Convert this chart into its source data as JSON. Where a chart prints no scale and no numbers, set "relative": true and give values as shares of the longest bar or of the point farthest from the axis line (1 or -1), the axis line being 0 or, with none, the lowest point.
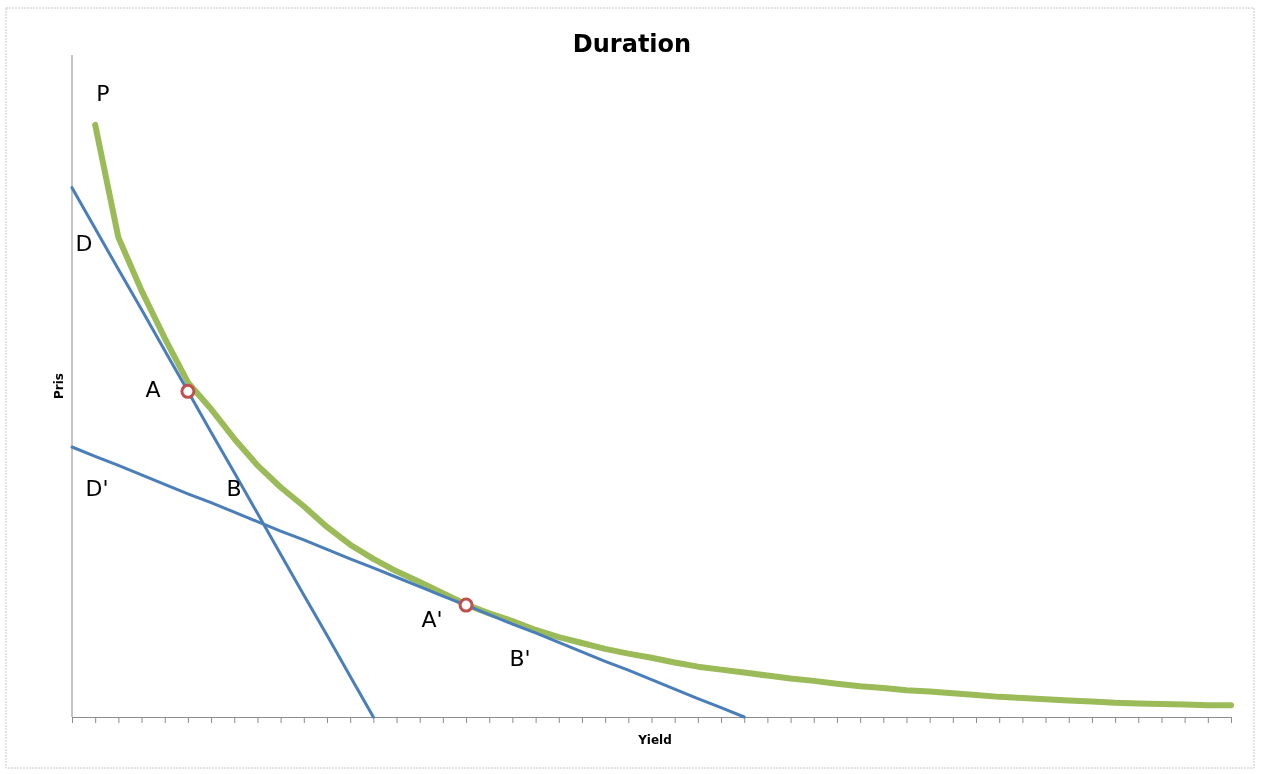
{
  "chart_data": {
    "type": "line",
    "title": "Duration",
    "xlabel": "Yield",
    "ylabel": "Pris",
    "relative": true,
    "categories": [
      null,
      null,
      null,
      null,
      null,
      null,
      null,
      null,
      null,
      null,
      null,
      null,
      null,
      null,
      null,
      null,
      null,
      null,
      null,
      null,
      null,
      null,
      null,
      null,
      null,
      null,
      null,
      null,
      null,
      null,
      null,
      null,
      null,
      null,
      null,
      null,
      null,
      null,
      null,
      null,
      null,
      null,
      null,
      null,
      null,
      null,
      null,
      null,
      null,
      null,
      null
    ],
    "grid": false,
    "marker": "none",
    "line_style": "solid",
    "series": [
      {
        "color": "#9bbb59",
        "values": [
          null,
          1.0,
          0.81,
          0.72,
          0.64,
          0.565,
          0.52,
          0.47,
          0.425,
          0.388,
          0.356,
          0.321,
          0.291,
          0.267,
          0.246,
          0.228,
          0.209,
          0.19,
          0.175,
          0.162,
          0.147,
          0.135,
          0.125,
          0.115,
          0.107,
          0.1,
          0.092,
          0.085,
          0.08,
          0.075,
          0.07,
          0.065,
          0.061,
          0.056,
          0.052,
          0.049,
          0.045,
          0.043,
          0.04,
          0.037,
          0.034,
          0.032,
          0.03,
          0.028,
          0.026,
          0.024,
          0.023,
          0.022,
          0.021,
          0.02,
          0.02
        ]
      },
      {
        "color": "#4a7ebb",
        "values": [
          0.894,
          0.825,
          0.756,
          0.688,
          0.619,
          0.55,
          0.481,
          0.413,
          0.344,
          0.275,
          0.206,
          0.138,
          0.069,
          0,
          null,
          null,
          null,
          null,
          null,
          null,
          null,
          null,
          null,
          null,
          null,
          null,
          null,
          null,
          null,
          null,
          null,
          null,
          null,
          null,
          null,
          null,
          null,
          null,
          null,
          null,
          null,
          null,
          null,
          null,
          null,
          null,
          null,
          null,
          null,
          null,
          null
        ]
      },
      {
        "color": "#4a7ebb",
        "values": [
          0.456,
          0.44,
          0.425,
          0.409,
          0.393,
          0.377,
          0.362,
          0.346,
          0.33,
          0.314,
          0.299,
          0.283,
          0.267,
          0.252,
          0.236,
          0.22,
          0.204,
          0.189,
          0.173,
          0.157,
          0.142,
          0.126,
          0.11,
          0.094,
          0.079,
          0.063,
          0.047,
          0.031,
          0.016,
          0,
          null,
          null,
          null,
          null,
          null,
          null,
          null,
          null,
          null,
          null,
          null,
          null,
          null,
          null,
          null,
          null,
          null,
          null,
          null,
          null,
          null
        ]
      }
    ],
    "annotations": [
      "P",
      "D",
      "A",
      "D'",
      "B",
      "A'",
      "B'"
    ]
  }
}
